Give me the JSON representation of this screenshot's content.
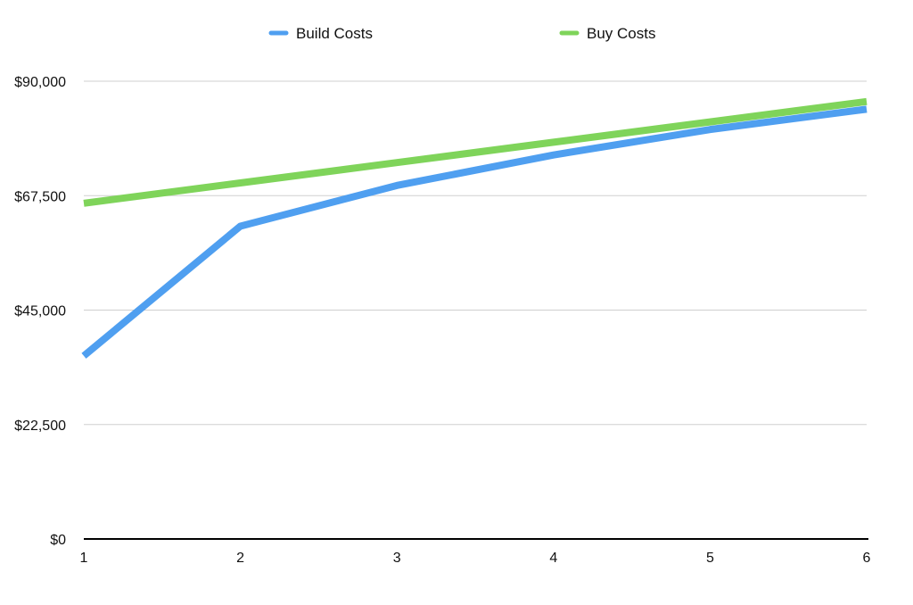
{
  "chart_data": {
    "type": "line",
    "title": "",
    "xlabel": "",
    "ylabel": "",
    "categories": [
      "1",
      "2",
      "3",
      "4",
      "5",
      "6"
    ],
    "x": [
      1,
      2,
      3,
      4,
      5,
      6
    ],
    "ylim": [
      0,
      90000
    ],
    "yticks": [
      0,
      22500,
      45000,
      67500,
      90000
    ],
    "ytick_labels": [
      "$0",
      "$22,500",
      "$45,000",
      "$67,500",
      "$90,000"
    ],
    "grid": true,
    "legend_position": "top",
    "series": [
      {
        "name": "Build Costs",
        "color": "#4f9ff0",
        "values": [
          36000,
          61500,
          69500,
          75500,
          80500,
          84500
        ]
      },
      {
        "name": "Buy Costs",
        "color": "#7fd45a",
        "values": [
          66000,
          70000,
          74000,
          78000,
          82000,
          86000
        ]
      }
    ]
  }
}
